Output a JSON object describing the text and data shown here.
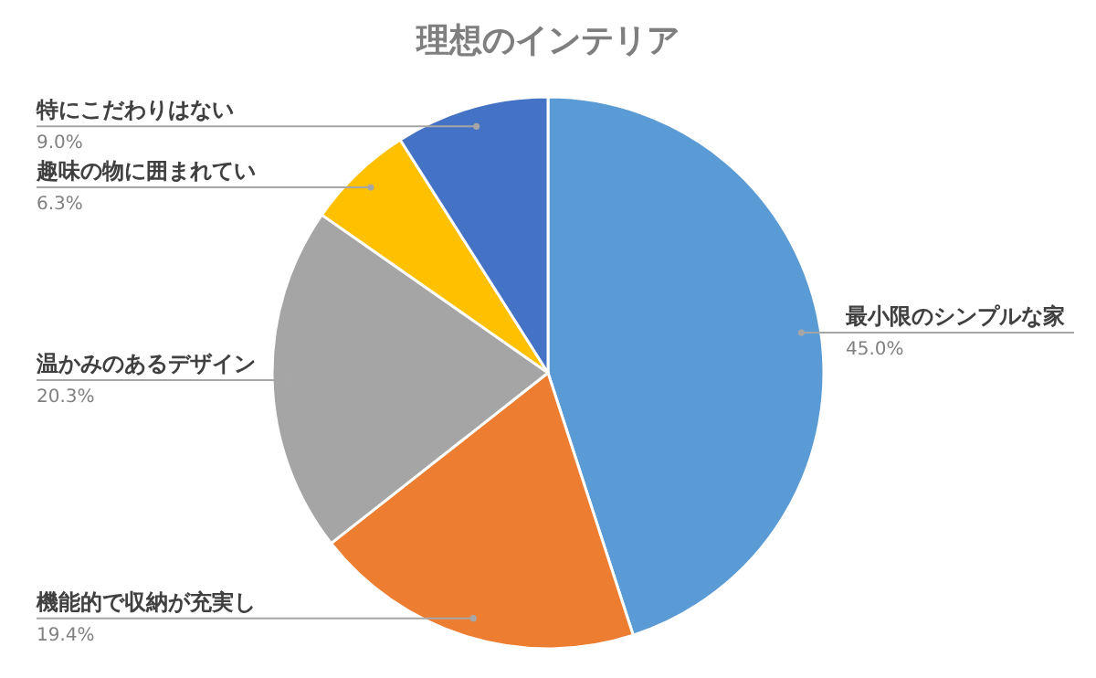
{
  "chart_data": {
    "type": "pie",
    "title": "理想のインテリア",
    "categories": [
      "最小限のシンプルな家",
      "機能的で収納が充実し",
      "温かみのあるデザイン",
      "趣味の物に囲まれてい",
      "特にこだわりはない"
    ],
    "values": [
      45.0,
      19.4,
      20.3,
      6.3,
      9.0
    ],
    "value_labels": [
      "45.0%",
      "19.4%",
      "20.3%",
      "6.3%",
      "9.0%"
    ],
    "colors": [
      "#5b9bd5",
      "#ed7d31",
      "#a5a5a5",
      "#ffc000",
      "#4472c4"
    ]
  }
}
